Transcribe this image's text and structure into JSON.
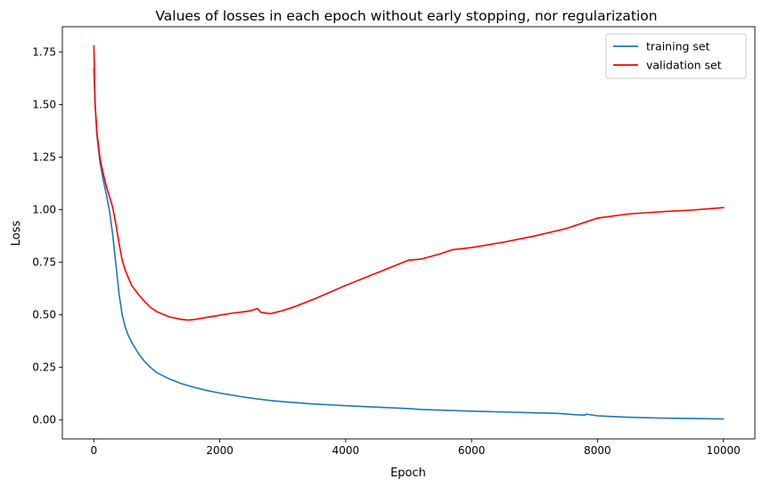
{
  "chart_data": {
    "type": "line",
    "title": "Values of losses in each epoch without early stopping, nor regularization",
    "xlabel": "Epoch",
    "ylabel": "Loss",
    "xlim": [
      -500,
      10500
    ],
    "ylim": [
      -0.09,
      1.87
    ],
    "xticks": [
      0,
      2000,
      4000,
      6000,
      8000,
      10000
    ],
    "xtick_labels": [
      "0",
      "2000",
      "4000",
      "6000",
      "8000",
      "10000"
    ],
    "yticks": [
      0.0,
      0.25,
      0.5,
      0.75,
      1.0,
      1.25,
      1.5,
      1.75
    ],
    "ytick_labels": [
      "0.00",
      "0.25",
      "0.50",
      "0.75",
      "1.00",
      "1.25",
      "1.50",
      "1.75"
    ],
    "grid": false,
    "legend_position": "top-right",
    "series": [
      {
        "name": "training set",
        "color": "#1f77b4",
        "x": [
          0,
          20,
          50,
          100,
          150,
          200,
          250,
          300,
          350,
          400,
          450,
          500,
          550,
          600,
          700,
          800,
          900,
          1000,
          1200,
          1400,
          1600,
          1800,
          2000,
          2200,
          2400,
          2600,
          2800,
          3000,
          3500,
          4000,
          4500,
          5000,
          5200,
          5500,
          6000,
          6500,
          7000,
          7400,
          7600,
          7800,
          7820,
          8000,
          8500,
          9000,
          9500,
          10000
        ],
        "y": [
          1.67,
          1.5,
          1.35,
          1.22,
          1.14,
          1.07,
          0.99,
          0.88,
          0.74,
          0.6,
          0.5,
          0.44,
          0.4,
          0.37,
          0.32,
          0.28,
          0.25,
          0.225,
          0.195,
          0.172,
          0.155,
          0.14,
          0.128,
          0.118,
          0.108,
          0.1,
          0.093,
          0.087,
          0.076,
          0.068,
          0.061,
          0.054,
          0.05,
          0.047,
          0.042,
          0.038,
          0.034,
          0.031,
          0.026,
          0.023,
          0.028,
          0.02,
          0.013,
          0.009,
          0.007,
          0.005
        ]
      },
      {
        "name": "validation set",
        "color": "#ff0000",
        "x": [
          0,
          20,
          50,
          100,
          150,
          200,
          250,
          300,
          350,
          400,
          450,
          500,
          600,
          700,
          800,
          900,
          1000,
          1200,
          1400,
          1500,
          1600,
          1800,
          2000,
          2200,
          2400,
          2500,
          2600,
          2650,
          2800,
          3000,
          3200,
          3500,
          4000,
          4500,
          5000,
          5200,
          5500,
          5700,
          6000,
          6500,
          7000,
          7500,
          7800,
          8000,
          8500,
          9000,
          9500,
          10000
        ],
        "y": [
          1.78,
          1.5,
          1.36,
          1.24,
          1.17,
          1.11,
          1.06,
          1.01,
          0.93,
          0.84,
          0.76,
          0.71,
          0.64,
          0.6,
          0.565,
          0.535,
          0.515,
          0.49,
          0.478,
          0.475,
          0.478,
          0.488,
          0.498,
          0.508,
          0.515,
          0.52,
          0.53,
          0.512,
          0.505,
          0.52,
          0.54,
          0.575,
          0.64,
          0.7,
          0.76,
          0.765,
          0.79,
          0.81,
          0.82,
          0.845,
          0.875,
          0.91,
          0.94,
          0.96,
          0.98,
          0.99,
          0.998,
          1.01
        ]
      }
    ]
  }
}
